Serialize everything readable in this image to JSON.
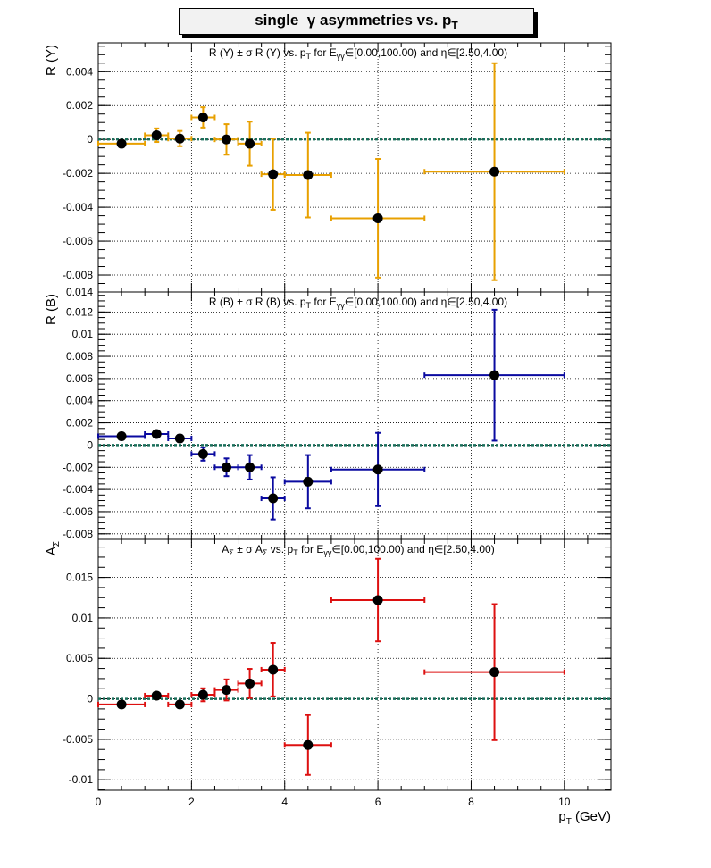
{
  "page_title": {
    "prefix": "single",
    "gamma": "γ",
    "middle": "asymmetries vs. p",
    "sub": "T"
  },
  "chart_data": [
    {
      "type": "scatter",
      "title": "R (Y) ± σ R (Y) vs. p_T for E_γγ∈[0.00,100.00) and η∈[2.50,4.00)",
      "title_parts": {
        "a": "R (Y) ± σ R (Y) vs. p",
        "a_sub": "T",
        "b": " for E",
        "b_sub": "γγ",
        "c": "∈[0.00,100.00) and η∈[2.50,4.00)"
      },
      "ylabel": "R (Y)",
      "xlabel": "",
      "xlim": [
        0,
        11
      ],
      "ylim": [
        -0.009,
        0.0057
      ],
      "yticks": [
        0.004,
        0.002,
        0,
        -0.002,
        -0.004,
        -0.006,
        -0.008
      ],
      "yticklabels": [
        "0.004",
        "0.002",
        "0",
        "-0.002",
        "-0.004",
        "-0.006",
        "-0.008"
      ],
      "extra_bottom_label": "0.014",
      "grid": true,
      "color": "#e8a000",
      "points": [
        {
          "x": 0.5,
          "xerr": 0.5,
          "y": -0.00025,
          "yerr": 0.0001
        },
        {
          "x": 1.25,
          "xerr": 0.25,
          "y": 0.00025,
          "yerr": 0.0004
        },
        {
          "x": 1.75,
          "xerr": 0.25,
          "y": 5e-05,
          "yerr": 0.00045
        },
        {
          "x": 2.25,
          "xerr": 0.25,
          "y": 0.0013,
          "yerr": 0.0006
        },
        {
          "x": 2.75,
          "xerr": 0.25,
          "y": 0.0,
          "yerr": 0.0009
        },
        {
          "x": 3.25,
          "xerr": 0.25,
          "y": -0.00025,
          "yerr": 0.0013
        },
        {
          "x": 3.75,
          "xerr": 0.25,
          "y": -0.00205,
          "yerr": 0.0021
        },
        {
          "x": 4.5,
          "xerr": 0.5,
          "y": -0.0021,
          "yerr": 0.0025
        },
        {
          "x": 6.0,
          "xerr": 1.0,
          "y": -0.00465,
          "yerr": 0.0035
        },
        {
          "x": 8.5,
          "xerr": 1.5,
          "y": -0.0019,
          "yerr": 0.0064
        }
      ]
    },
    {
      "type": "scatter",
      "title": "R (B) ± σ R (B) vs. p_T for E_γγ∈[0.00,100.00) and η∈[2.50,4.00)",
      "title_parts": {
        "a": "R (B) ± σ R (B) vs. p",
        "a_sub": "T",
        "b": " for E",
        "b_sub": "γγ",
        "c": "∈[0.00,100.00) and η∈[2.50,4.00)"
      },
      "ylabel": "R (B)",
      "xlabel": "",
      "xlim": [
        0,
        11
      ],
      "ylim": [
        -0.0085,
        0.0138
      ],
      "yticks": [
        0.012,
        0.01,
        0.008,
        0.006,
        0.004,
        0.002,
        0,
        -0.002,
        -0.004,
        -0.006,
        -0.008
      ],
      "yticklabels": [
        "0.012",
        "0.01",
        "0.008",
        "0.006",
        "0.004",
        "0.002",
        "0",
        "-0.002",
        "-0.004",
        "-0.006",
        "-0.008"
      ],
      "grid": true,
      "color": "#0a0aa0",
      "points": [
        {
          "x": 0.5,
          "xerr": 0.5,
          "y": 0.0008,
          "yerr": 0.0001
        },
        {
          "x": 1.25,
          "xerr": 0.25,
          "y": 0.001,
          "yerr": 0.0002
        },
        {
          "x": 1.75,
          "xerr": 0.25,
          "y": 0.0006,
          "yerr": 0.0003
        },
        {
          "x": 2.25,
          "xerr": 0.25,
          "y": -0.0008,
          "yerr": 0.0006
        },
        {
          "x": 2.75,
          "xerr": 0.25,
          "y": -0.002,
          "yerr": 0.0008
        },
        {
          "x": 3.25,
          "xerr": 0.25,
          "y": -0.002,
          "yerr": 0.0011
        },
        {
          "x": 3.75,
          "xerr": 0.25,
          "y": -0.0048,
          "yerr": 0.0019
        },
        {
          "x": 4.5,
          "xerr": 0.5,
          "y": -0.0033,
          "yerr": 0.0024
        },
        {
          "x": 6.0,
          "xerr": 1.0,
          "y": -0.0022,
          "yerr": 0.0033
        },
        {
          "x": 8.5,
          "xerr": 1.5,
          "y": 0.0063,
          "yerr": 0.0059
        }
      ]
    },
    {
      "type": "scatter",
      "title": "A_Σ ± σ A_Σ vs. p_T for E_γγ∈[0.00,100.00) and η∈[2.50,4.00)",
      "title_parts": {
        "a": "A",
        "a_sub": "Σ",
        "a2": " ± σ A",
        "a2_sub": "Σ",
        "a3": " vs. p",
        "a3_sub": "T",
        "b": " for E",
        "b_sub": "γγ",
        "c": "∈[0.00,100.00) and η∈[2.50,4.00)"
      },
      "ylabel": "A",
      "ylabel_sub": "Σ",
      "xlabel": "p",
      "xlabel_sub": "T",
      "xlabel_unit": " (GeV)",
      "xlim": [
        0,
        11
      ],
      "ylim": [
        -0.0113,
        0.0197
      ],
      "yticks": [
        0.015,
        0.01,
        0.005,
        0,
        -0.005,
        -0.01
      ],
      "yticklabels": [
        "0.015",
        "0.01",
        "0.005",
        "0",
        "-0.005",
        "-0.01"
      ],
      "xticks": [
        0,
        2,
        4,
        6,
        8,
        10
      ],
      "xticklabels": [
        "0",
        "2",
        "4",
        "6",
        "8",
        "10"
      ],
      "grid": true,
      "color": "#dd1010",
      "points": [
        {
          "x": 0.5,
          "xerr": 0.5,
          "y": -0.0007,
          "yerr": 0.0001
        },
        {
          "x": 1.25,
          "xerr": 0.25,
          "y": 0.0004,
          "yerr": 0.0002
        },
        {
          "x": 1.75,
          "xerr": 0.25,
          "y": -0.0007,
          "yerr": 0.0003
        },
        {
          "x": 2.25,
          "xerr": 0.25,
          "y": 0.0005,
          "yerr": 0.0008
        },
        {
          "x": 2.75,
          "xerr": 0.25,
          "y": 0.0011,
          "yerr": 0.0013
        },
        {
          "x": 3.25,
          "xerr": 0.25,
          "y": 0.0019,
          "yerr": 0.0018
        },
        {
          "x": 3.75,
          "xerr": 0.25,
          "y": 0.0036,
          "yerr": 0.0033
        },
        {
          "x": 4.5,
          "xerr": 0.5,
          "y": -0.0057,
          "yerr": 0.0037
        },
        {
          "x": 6.0,
          "xerr": 1.0,
          "y": 0.0122,
          "yerr": 0.0051
        },
        {
          "x": 8.5,
          "xerr": 1.5,
          "y": 0.0033,
          "yerr": 0.0084
        }
      ]
    }
  ]
}
